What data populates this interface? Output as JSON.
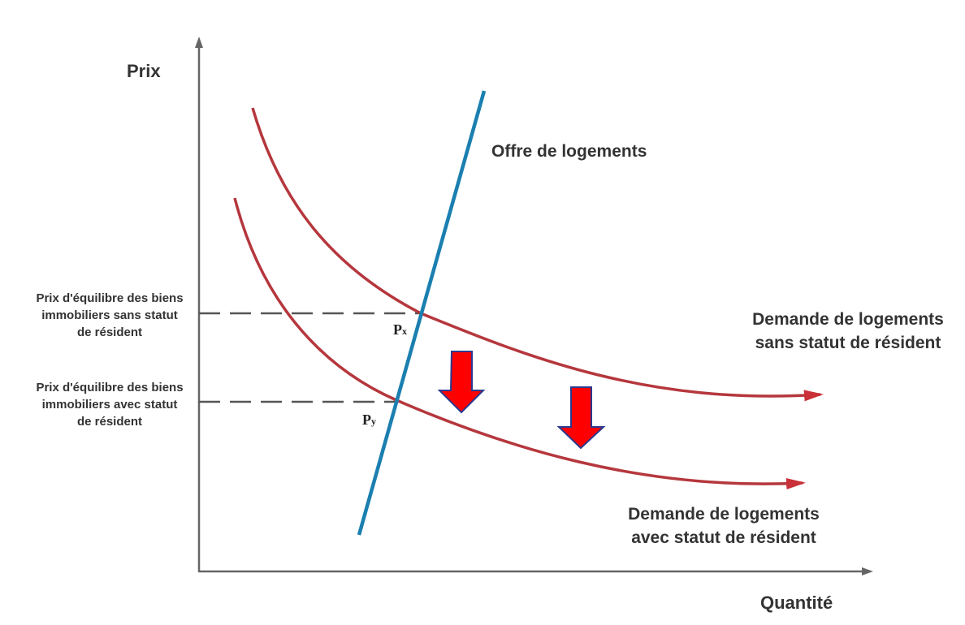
{
  "axes": {
    "y_title": "Prix",
    "x_title": "Quantité"
  },
  "supply": {
    "label": "Offre de logements",
    "color": "#1b7fb0"
  },
  "demand_without_status": {
    "label_line1": "Demande de logements",
    "label_line2": "sans statut de résident",
    "color": "#b5373d"
  },
  "demand_with_status": {
    "label_line1": "Demande de logements",
    "label_line2": "avec statut de résident",
    "color": "#b5373d"
  },
  "price_without_status": {
    "line1": "Prix d'équilibre des biens",
    "line2": "immobiliers sans statut",
    "line3": "de résident"
  },
  "price_with_status": {
    "line1": "Prix d'équilibre des biens",
    "line2": "immobiliers avec statut",
    "line3": "de résident"
  },
  "points": {
    "px_main": "P",
    "px_sub": "x",
    "py_main": "P",
    "py_sub": "y"
  },
  "shift_arrows": {
    "color": "#ff0000",
    "outline": "#2b3a8f",
    "direction": "down"
  }
}
